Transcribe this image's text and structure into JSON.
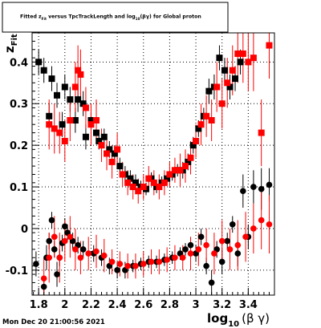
{
  "chart_data": {
    "type": "scatter",
    "title": "Fitted z_{Fit} versus TpcTrackLength and log_{10}(βγ) for Global proton",
    "title_parts": {
      "a": "Fitted  z",
      "a_sub": "Fit",
      "b": "  versus TpcTrackLength and log",
      "b_sub": "10",
      "c": "(βγ) for Global proton"
    },
    "xlabel": "log",
    "xlabel_sub": "10",
    "xlabel_tail": "(β γ)",
    "ylabel": "z",
    "ylabel_sub": "Fit",
    "xlim": [
      1.75,
      3.6
    ],
    "ylim": [
      -0.16,
      0.47
    ],
    "x_ticks": [
      1.8,
      2.0,
      2.2,
      2.4,
      2.6,
      2.8,
      3.0,
      3.2,
      3.4
    ],
    "x_tick_labels": [
      "1.8",
      "2",
      "2.2",
      "2.4",
      "2.6",
      "2.8",
      "3",
      "3.2",
      "3.4"
    ],
    "y_ticks": [
      -0.1,
      0.0,
      0.1,
      0.2,
      0.3,
      0.4
    ],
    "y_tick_labels": [
      "-0.1",
      "0",
      "0.1",
      "0.2",
      "0.3",
      "0.4"
    ],
    "grid": true,
    "series": [
      {
        "color": "#000000",
        "marker": "circle",
        "points": [
          [
            1.78,
            -0.085,
            0.03
          ],
          [
            1.84,
            -0.14,
            0.02
          ],
          [
            1.86,
            -0.07,
            0.03
          ],
          [
            1.88,
            -0.03,
            0.02
          ],
          [
            1.9,
            0.02,
            0.02
          ],
          [
            1.92,
            -0.05,
            0.02
          ],
          [
            1.94,
            -0.11,
            0.03
          ],
          [
            1.96,
            -0.07,
            0.02
          ],
          [
            1.98,
            -0.035,
            0.02
          ],
          [
            2.0,
            0.005,
            0.02
          ],
          [
            2.02,
            -0.01,
            0.02
          ],
          [
            2.06,
            -0.03,
            0.02
          ],
          [
            2.1,
            -0.04,
            0.02
          ],
          [
            2.14,
            -0.05,
            0.02
          ],
          [
            2.22,
            -0.06,
            0.02
          ],
          [
            2.28,
            -0.07,
            0.02
          ],
          [
            2.34,
            -0.09,
            0.02
          ],
          [
            2.4,
            -0.1,
            0.02
          ],
          [
            2.46,
            -0.1,
            0.02
          ],
          [
            2.52,
            -0.09,
            0.015
          ],
          [
            2.58,
            -0.085,
            0.015
          ],
          [
            2.64,
            -0.08,
            0.015
          ],
          [
            2.7,
            -0.08,
            0.015
          ],
          [
            2.76,
            -0.075,
            0.015
          ],
          [
            2.82,
            -0.07,
            0.015
          ],
          [
            2.88,
            -0.06,
            0.015
          ],
          [
            2.92,
            -0.05,
            0.015
          ],
          [
            2.96,
            -0.04,
            0.02
          ],
          [
            3.0,
            -0.06,
            0.02
          ],
          [
            3.04,
            -0.02,
            0.02
          ],
          [
            3.08,
            -0.09,
            0.02
          ],
          [
            3.12,
            -0.13,
            0.03
          ],
          [
            3.16,
            -0.05,
            0.02
          ],
          [
            3.2,
            -0.08,
            0.03
          ],
          [
            3.24,
            -0.03,
            0.02
          ],
          [
            3.28,
            0.01,
            0.02
          ],
          [
            3.32,
            -0.06,
            0.03
          ],
          [
            3.36,
            0.09,
            0.04
          ],
          [
            3.4,
            -0.02,
            0.03
          ],
          [
            3.44,
            0.1,
            0.04
          ],
          [
            3.5,
            0.095,
            0.05
          ],
          [
            3.56,
            0.105,
            0.04
          ]
        ]
      },
      {
        "color": "#ff0000",
        "marker": "circle",
        "points": [
          [
            1.84,
            -0.12,
            0.05
          ],
          [
            1.88,
            -0.07,
            0.06
          ],
          [
            1.92,
            -0.02,
            0.05
          ],
          [
            1.96,
            -0.07,
            0.06
          ],
          [
            2.0,
            -0.03,
            0.05
          ],
          [
            2.04,
            -0.02,
            0.05
          ],
          [
            2.08,
            -0.05,
            0.05
          ],
          [
            2.12,
            -0.07,
            0.04
          ],
          [
            2.18,
            -0.06,
            0.04
          ],
          [
            2.24,
            -0.055,
            0.04
          ],
          [
            2.3,
            -0.065,
            0.04
          ],
          [
            2.36,
            -0.08,
            0.03
          ],
          [
            2.42,
            -0.085,
            0.03
          ],
          [
            2.48,
            -0.09,
            0.03
          ],
          [
            2.54,
            -0.09,
            0.03
          ],
          [
            2.6,
            -0.085,
            0.03
          ],
          [
            2.66,
            -0.08,
            0.03
          ],
          [
            2.72,
            -0.08,
            0.03
          ],
          [
            2.78,
            -0.075,
            0.03
          ],
          [
            2.84,
            -0.07,
            0.03
          ],
          [
            2.9,
            -0.07,
            0.03
          ],
          [
            2.96,
            -0.06,
            0.04
          ],
          [
            3.02,
            -0.05,
            0.04
          ],
          [
            3.08,
            -0.04,
            0.04
          ],
          [
            3.14,
            -0.06,
            0.05
          ],
          [
            3.2,
            -0.03,
            0.05
          ],
          [
            3.26,
            -0.05,
            0.05
          ],
          [
            3.32,
            -0.04,
            0.06
          ],
          [
            3.38,
            -0.02,
            0.06
          ],
          [
            3.44,
            0.0,
            0.06
          ],
          [
            3.5,
            0.02,
            0.07
          ],
          [
            3.56,
            0.01,
            0.07
          ]
        ]
      },
      {
        "color": "#000000",
        "marker": "square",
        "points": [
          [
            1.8,
            0.4,
            0.03
          ],
          [
            1.84,
            0.38,
            0.03
          ],
          [
            1.88,
            0.27,
            0.03
          ],
          [
            1.9,
            0.36,
            0.03
          ],
          [
            1.94,
            0.32,
            0.03
          ],
          [
            1.98,
            0.25,
            0.03
          ],
          [
            2.0,
            0.34,
            0.03
          ],
          [
            2.04,
            0.31,
            0.03
          ],
          [
            2.08,
            0.26,
            0.03
          ],
          [
            2.1,
            0.31,
            0.03
          ],
          [
            2.14,
            0.3,
            0.03
          ],
          [
            2.16,
            0.22,
            0.03
          ],
          [
            2.2,
            0.26,
            0.02
          ],
          [
            2.24,
            0.23,
            0.02
          ],
          [
            2.26,
            0.21,
            0.02
          ],
          [
            2.3,
            0.22,
            0.02
          ],
          [
            2.34,
            0.19,
            0.02
          ],
          [
            2.38,
            0.18,
            0.02
          ],
          [
            2.42,
            0.15,
            0.02
          ],
          [
            2.46,
            0.13,
            0.02
          ],
          [
            2.5,
            0.12,
            0.02
          ],
          [
            2.54,
            0.11,
            0.02
          ],
          [
            2.58,
            0.1,
            0.015
          ],
          [
            2.62,
            0.095,
            0.015
          ],
          [
            2.66,
            0.12,
            0.015
          ],
          [
            2.7,
            0.1,
            0.015
          ],
          [
            2.74,
            0.11,
            0.015
          ],
          [
            2.78,
            0.12,
            0.015
          ],
          [
            2.82,
            0.13,
            0.015
          ],
          [
            2.86,
            0.14,
            0.015
          ],
          [
            2.9,
            0.14,
            0.02
          ],
          [
            2.94,
            0.16,
            0.02
          ],
          [
            2.98,
            0.2,
            0.02
          ],
          [
            3.02,
            0.24,
            0.02
          ],
          [
            3.06,
            0.27,
            0.02
          ],
          [
            3.1,
            0.33,
            0.03
          ],
          [
            3.14,
            0.34,
            0.03
          ],
          [
            3.18,
            0.41,
            0.03
          ],
          [
            3.22,
            0.38,
            0.03
          ],
          [
            3.26,
            0.34,
            0.03
          ],
          [
            3.3,
            0.36,
            0.03
          ],
          [
            3.34,
            0.4,
            0.03
          ]
        ]
      },
      {
        "color": "#ff0000",
        "marker": "square",
        "points": [
          [
            1.88,
            0.25,
            0.06
          ],
          [
            1.92,
            0.24,
            0.06
          ],
          [
            1.96,
            0.23,
            0.05
          ],
          [
            2.0,
            0.21,
            0.05
          ],
          [
            2.04,
            0.26,
            0.05
          ],
          [
            2.08,
            0.34,
            0.06
          ],
          [
            2.1,
            0.38,
            0.06
          ],
          [
            2.12,
            0.37,
            0.06
          ],
          [
            2.16,
            0.29,
            0.05
          ],
          [
            2.2,
            0.25,
            0.05
          ],
          [
            2.24,
            0.26,
            0.05
          ],
          [
            2.28,
            0.2,
            0.04
          ],
          [
            2.32,
            0.18,
            0.04
          ],
          [
            2.36,
            0.16,
            0.04
          ],
          [
            2.4,
            0.19,
            0.04
          ],
          [
            2.44,
            0.13,
            0.03
          ],
          [
            2.48,
            0.11,
            0.03
          ],
          [
            2.52,
            0.1,
            0.03
          ],
          [
            2.56,
            0.09,
            0.03
          ],
          [
            2.6,
            0.1,
            0.03
          ],
          [
            2.64,
            0.12,
            0.03
          ],
          [
            2.68,
            0.11,
            0.03
          ],
          [
            2.72,
            0.1,
            0.03
          ],
          [
            2.76,
            0.11,
            0.03
          ],
          [
            2.8,
            0.13,
            0.03
          ],
          [
            2.84,
            0.14,
            0.03
          ],
          [
            2.88,
            0.14,
            0.04
          ],
          [
            2.92,
            0.15,
            0.04
          ],
          [
            2.96,
            0.17,
            0.04
          ],
          [
            3.0,
            0.21,
            0.04
          ],
          [
            3.04,
            0.25,
            0.05
          ],
          [
            3.08,
            0.27,
            0.05
          ],
          [
            3.12,
            0.26,
            0.05
          ],
          [
            3.16,
            0.34,
            0.06
          ],
          [
            3.2,
            0.3,
            0.06
          ],
          [
            3.24,
            0.35,
            0.06
          ],
          [
            3.28,
            0.38,
            0.06
          ],
          [
            3.32,
            0.42,
            0.07
          ],
          [
            3.36,
            0.42,
            0.07
          ],
          [
            3.4,
            0.4,
            0.07
          ],
          [
            3.44,
            0.41,
            0.08
          ],
          [
            3.5,
            0.23,
            0.08
          ],
          [
            3.56,
            0.44,
            0.08
          ]
        ]
      }
    ]
  },
  "footer": {
    "timestamp": "Mon Dec 20 21:00:56 2021"
  }
}
